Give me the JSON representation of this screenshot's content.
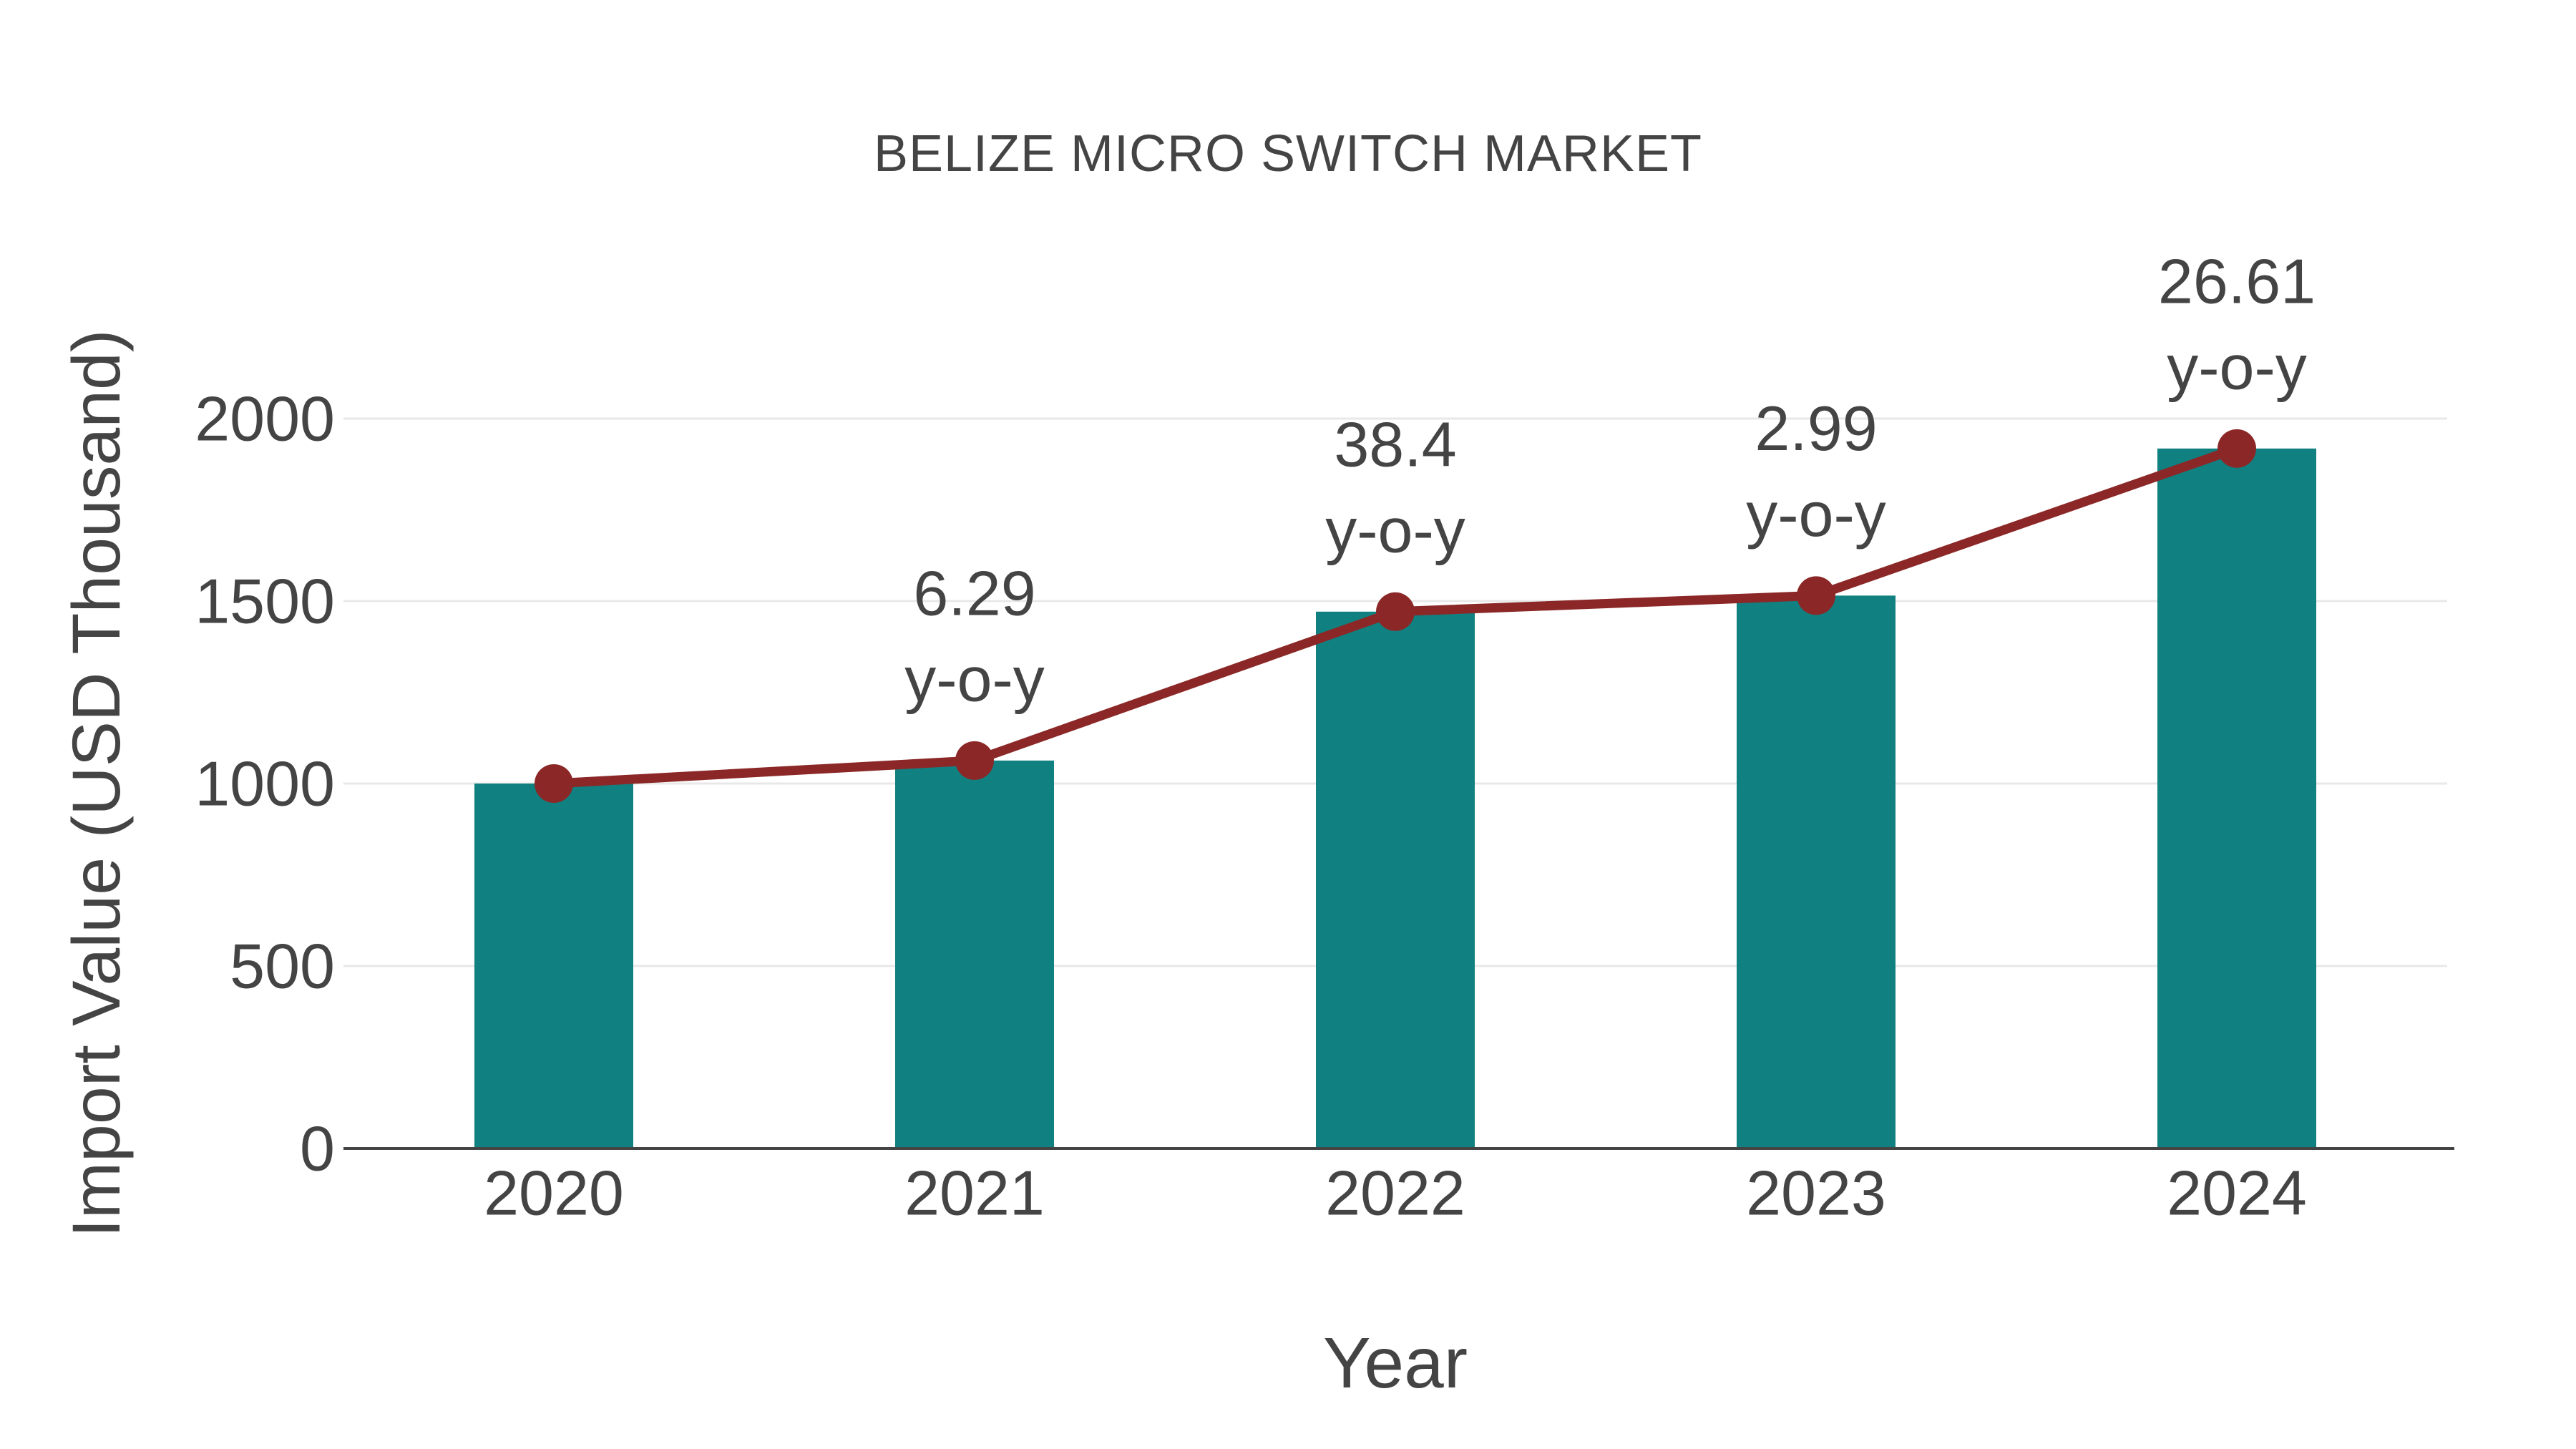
{
  "chart_data": {
    "type": "bar",
    "title": "BELIZE MICRO SWITCH MARKET",
    "xlabel": "Year",
    "ylabel": "Import Value (USD Thousand)",
    "categories": [
      "2020",
      "2021",
      "2022",
      "2023",
      "2024"
    ],
    "series": [
      {
        "name": "import-value-bars",
        "type": "bar",
        "values": [
          1000,
          1063,
          1471,
          1515,
          1918
        ]
      },
      {
        "name": "import-value-trend",
        "type": "line",
        "values": [
          1000,
          1063,
          1471,
          1515,
          1918
        ]
      }
    ],
    "yoy_annotations": [
      {
        "category_index": 1,
        "line1": "6.29",
        "line2": "y-o-y"
      },
      {
        "category_index": 2,
        "line1": "38.4",
        "line2": "y-o-y"
      },
      {
        "category_index": 3,
        "line1": "2.99",
        "line2": "y-o-y"
      },
      {
        "category_index": 4,
        "line1": "26.61",
        "line2": "y-o-y"
      }
    ],
    "yticks": [
      "0",
      "500",
      "1000",
      "1500",
      "2000"
    ],
    "ytick_values": [
      0,
      500,
      1000,
      1500,
      2000
    ],
    "ylim": [
      0,
      2000
    ],
    "grid": true,
    "legend_position": "none"
  },
  "colors": {
    "bar": "#118080",
    "line": "#8b2827",
    "marker": "#8b2827",
    "text": "#444444",
    "grid": "#e8e8e8",
    "axis": "#444444",
    "background": "#ffffff"
  }
}
